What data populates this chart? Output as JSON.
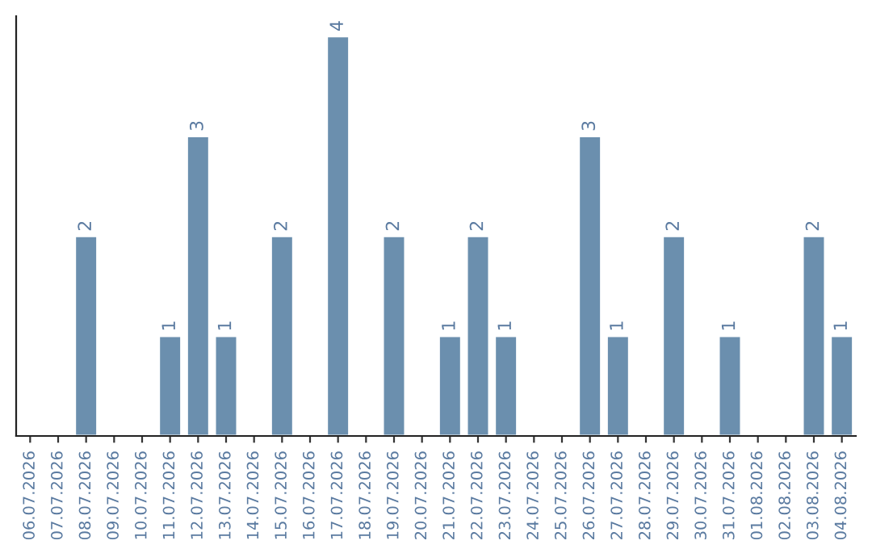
{
  "chart_data": {
    "type": "bar",
    "categories": [
      "06.07.2026",
      "07.07.2026",
      "08.07.2026",
      "09.07.2026",
      "10.07.2026",
      "11.07.2026",
      "12.07.2026",
      "13.07.2026",
      "14.07.2026",
      "15.07.2026",
      "16.07.2026",
      "17.07.2026",
      "18.07.2026",
      "19.07.2026",
      "20.07.2026",
      "21.07.2026",
      "22.07.2026",
      "23.07.2026",
      "24.07.2026",
      "25.07.2026",
      "26.07.2026",
      "27.07.2026",
      "28.07.2026",
      "29.07.2026",
      "30.07.2026",
      "31.07.2026",
      "01.08.2026",
      "02.08.2026",
      "03.08.2026",
      "04.08.2026"
    ],
    "values": [
      null,
      null,
      2,
      null,
      null,
      1,
      3,
      1,
      null,
      2,
      null,
      4,
      null,
      2,
      null,
      1,
      2,
      1,
      null,
      null,
      3,
      1,
      null,
      2,
      null,
      1,
      null,
      null,
      2,
      1
    ],
    "value_labels": [
      null,
      null,
      "2",
      null,
      null,
      "1",
      "3",
      "1",
      null,
      "2",
      null,
      "4",
      null,
      "2",
      null,
      "1",
      "2",
      "1",
      null,
      null,
      "3",
      "1",
      null,
      "2",
      null,
      "1",
      null,
      null,
      "2",
      "1"
    ],
    "color": "#6b8fae",
    "tick_labels": "x",
    "grid": false,
    "legend": false
  }
}
